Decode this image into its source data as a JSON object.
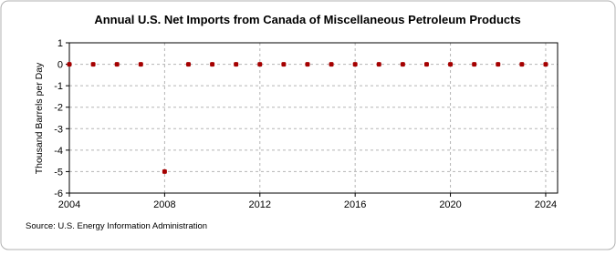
{
  "chart_data": {
    "type": "scatter",
    "title": "Annual U.S. Net Imports from Canada of Miscellaneous Petroleum Products",
    "y_label": "Thousand Barrels per Day",
    "source": "Source: U.S. Energy Information Administration",
    "x": [
      2004,
      2005,
      2006,
      2007,
      2008,
      2009,
      2010,
      2011,
      2012,
      2013,
      2014,
      2015,
      2016,
      2017,
      2018,
      2019,
      2020,
      2021,
      2022,
      2023,
      2024
    ],
    "values": [
      0,
      0,
      0,
      0,
      -5,
      0,
      0,
      0,
      0,
      0,
      0,
      0,
      0,
      0,
      0,
      0,
      0,
      0,
      0,
      0,
      0
    ],
    "color": "#a50000",
    "xlim": [
      2004,
      2024.5
    ],
    "xticks": [
      2004,
      2008,
      2012,
      2016,
      2020,
      2024
    ],
    "ylim": [
      -6,
      1
    ],
    "yticks": [
      -6,
      -5,
      -4,
      -3,
      -2,
      -1,
      0,
      1
    ],
    "grid": true
  }
}
